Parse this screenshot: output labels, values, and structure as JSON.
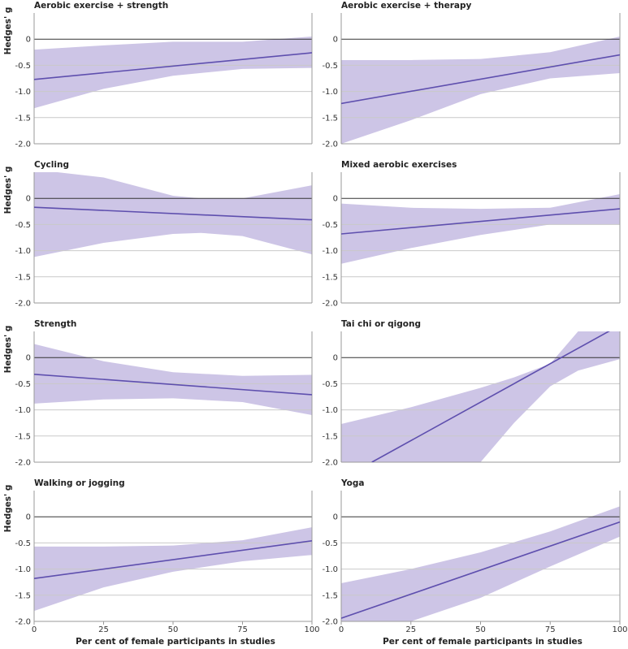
{
  "figure": {
    "y_axis_label": "Hedges' g",
    "x_axis_label": "Per cent of female participants in studies"
  },
  "colors": {
    "band": "#cdc5e6",
    "line": "#5e4fae",
    "grid": "#c9c9c9",
    "zero_line": "#333333",
    "axis": "#9a9a9a"
  },
  "chart_data": [
    {
      "type": "line",
      "title": "Aerobic exercise + strength",
      "xlabel": "Per cent of female participants in studies",
      "ylabel": "Hedges' g",
      "xlim": [
        0,
        100
      ],
      "ylim": [
        -2.0,
        0.5
      ],
      "xticks": [
        0,
        25,
        50,
        75,
        100
      ],
      "yticks": [
        0,
        -0.5,
        -1.0,
        -1.5,
        -2.0
      ],
      "ytick_labels": [
        "0",
        "-0.5",
        "-1.0",
        "-1.5",
        "-2.0"
      ],
      "xtick_labels": [
        "0",
        "25",
        "50",
        "75",
        "100"
      ],
      "fit": {
        "x": [
          0,
          100
        ],
        "y": [
          -0.77,
          -0.26
        ]
      },
      "ci": {
        "x": [
          0,
          25,
          50,
          75,
          100
        ],
        "upper": [
          -0.2,
          -0.12,
          -0.05,
          -0.05,
          0.05
        ],
        "lower": [
          -1.32,
          -0.95,
          -0.7,
          -0.57,
          -0.55
        ]
      }
    },
    {
      "type": "line",
      "title": "Aerobic exercise + therapy",
      "xlabel": "Per cent of female participants in studies",
      "ylabel": "Hedges' g",
      "xlim": [
        0,
        100
      ],
      "ylim": [
        -2.0,
        0.5
      ],
      "xticks": [
        0,
        25,
        50,
        75,
        100
      ],
      "yticks": [
        0,
        -0.5,
        -1.0,
        -1.5,
        -2.0
      ],
      "ytick_labels": [
        "0",
        "-0.5",
        "-1.0",
        "-1.5",
        "-2.0"
      ],
      "xtick_labels": [
        "0",
        "25",
        "50",
        "75",
        "100"
      ],
      "fit": {
        "x": [
          0,
          100
        ],
        "y": [
          -1.23,
          -0.3
        ]
      },
      "ci": {
        "x": [
          0,
          25,
          50,
          75,
          100
        ],
        "upper": [
          -0.4,
          -0.4,
          -0.38,
          -0.25,
          0.05
        ],
        "lower": [
          -2.0,
          -1.55,
          -1.05,
          -0.75,
          -0.65
        ]
      }
    },
    {
      "type": "line",
      "title": "Cycling",
      "xlabel": "Per cent of female participants in studies",
      "ylabel": "Hedges' g",
      "xlim": [
        0,
        100
      ],
      "ylim": [
        -2.0,
        0.5
      ],
      "xticks": [
        0,
        25,
        50,
        75,
        100
      ],
      "yticks": [
        0,
        -0.5,
        -1.0,
        -1.5,
        -2.0
      ],
      "ytick_labels": [
        "0",
        "-0.5",
        "-1.0",
        "-1.5",
        "-2.0"
      ],
      "xtick_labels": [
        "0",
        "25",
        "50",
        "75",
        "100"
      ],
      "fit": {
        "x": [
          0,
          100
        ],
        "y": [
          -0.17,
          -0.41
        ]
      },
      "ci": {
        "x": [
          0,
          25,
          50,
          60,
          75,
          100
        ],
        "upper": [
          0.55,
          0.4,
          0.05,
          0.0,
          0.0,
          0.25
        ],
        "lower": [
          -1.12,
          -0.85,
          -0.68,
          -0.66,
          -0.72,
          -1.07
        ]
      }
    },
    {
      "type": "line",
      "title": "Mixed aerobic exercises",
      "xlabel": "Per cent of female participants in studies",
      "ylabel": "Hedges' g",
      "xlim": [
        0,
        100
      ],
      "ylim": [
        -2.0,
        0.5
      ],
      "xticks": [
        0,
        25,
        50,
        75,
        100
      ],
      "yticks": [
        0,
        -0.5,
        -1.0,
        -1.5,
        -2.0
      ],
      "ytick_labels": [
        "0",
        "-0.5",
        "-1.0",
        "-1.5",
        "-2.0"
      ],
      "xtick_labels": [
        "0",
        "25",
        "50",
        "75",
        "100"
      ],
      "fit": {
        "x": [
          0,
          100
        ],
        "y": [
          -0.68,
          -0.2
        ]
      },
      "ci": {
        "x": [
          0,
          25,
          50,
          75,
          100
        ],
        "upper": [
          -0.1,
          -0.18,
          -0.2,
          -0.18,
          0.08
        ],
        "lower": [
          -1.25,
          -0.95,
          -0.7,
          -0.5,
          -0.5
        ]
      }
    },
    {
      "type": "line",
      "title": "Strength",
      "xlabel": "Per cent of female participants in studies",
      "ylabel": "Hedges' g",
      "xlim": [
        0,
        100
      ],
      "ylim": [
        -2.0,
        0.5
      ],
      "xticks": [
        0,
        25,
        50,
        75,
        100
      ],
      "yticks": [
        0,
        -0.5,
        -1.0,
        -1.5,
        -2.0
      ],
      "ytick_labels": [
        "0",
        "-0.5",
        "-1.0",
        "-1.5",
        "-2.0"
      ],
      "xtick_labels": [
        "0",
        "25",
        "50",
        "75",
        "100"
      ],
      "fit": {
        "x": [
          0,
          100
        ],
        "y": [
          -0.32,
          -0.71
        ]
      },
      "ci": {
        "x": [
          0,
          25,
          50,
          75,
          100
        ],
        "upper": [
          0.26,
          -0.07,
          -0.28,
          -0.35,
          -0.33
        ],
        "lower": [
          -0.88,
          -0.8,
          -0.78,
          -0.85,
          -1.1
        ]
      }
    },
    {
      "type": "line",
      "title": "Tai chi or qigong",
      "xlabel": "Per cent of female participants in studies",
      "ylabel": "Hedges' g",
      "xlim": [
        0,
        100
      ],
      "ylim": [
        -2.0,
        0.5
      ],
      "xticks": [
        0,
        25,
        50,
        75,
        100
      ],
      "yticks": [
        0,
        -0.5,
        -1.0,
        -1.5,
        -2.0
      ],
      "ytick_labels": [
        "0",
        "-0.5",
        "-1.0",
        "-1.5",
        "-2.0"
      ],
      "xtick_labels": [
        "0",
        "25",
        "50",
        "75",
        "100"
      ],
      "fit": {
        "x": [
          11,
          97
        ],
        "y": [
          -2.0,
          0.53
        ]
      },
      "ci": {
        "x": [
          0,
          25,
          50,
          62,
          75,
          85,
          100
        ],
        "upper": [
          -1.27,
          -0.95,
          -0.58,
          -0.38,
          -0.12,
          0.5,
          0.5
        ],
        "lower": [
          -2.0,
          -2.0,
          -2.0,
          -1.25,
          -0.55,
          -0.25,
          -0.03
        ]
      }
    },
    {
      "type": "line",
      "title": "Walking or jogging",
      "xlabel": "Per cent of female participants in studies",
      "ylabel": "Hedges' g",
      "xlim": [
        0,
        100
      ],
      "ylim": [
        -2.0,
        0.5
      ],
      "xticks": [
        0,
        25,
        50,
        75,
        100
      ],
      "yticks": [
        0,
        -0.5,
        -1.0,
        -1.5,
        -2.0
      ],
      "ytick_labels": [
        "0",
        "-0.5",
        "-1.0",
        "-1.5",
        "-2.0"
      ],
      "xtick_labels": [
        "0",
        "25",
        "50",
        "75",
        "100"
      ],
      "fit": {
        "x": [
          0,
          100
        ],
        "y": [
          -1.18,
          -0.46
        ]
      },
      "ci": {
        "x": [
          0,
          25,
          50,
          75,
          100
        ],
        "upper": [
          -0.57,
          -0.57,
          -0.55,
          -0.45,
          -0.2
        ],
        "lower": [
          -1.8,
          -1.35,
          -1.05,
          -0.85,
          -0.73
        ]
      }
    },
    {
      "type": "line",
      "title": "Yoga",
      "xlabel": "Per cent of female participants in studies",
      "ylabel": "Hedges' g",
      "xlim": [
        0,
        100
      ],
      "ylim": [
        -2.0,
        0.5
      ],
      "xticks": [
        0,
        25,
        50,
        75,
        100
      ],
      "yticks": [
        0,
        -0.5,
        -1.0,
        -1.5,
        -2.0
      ],
      "ytick_labels": [
        "0",
        "-0.5",
        "-1.0",
        "-1.5",
        "-2.0"
      ],
      "xtick_labels": [
        "0",
        "25",
        "50",
        "75",
        "100"
      ],
      "fit": {
        "x": [
          0,
          100
        ],
        "y": [
          -1.94,
          -0.1
        ]
      },
      "ci": {
        "x": [
          0,
          25,
          50,
          75,
          100
        ],
        "upper": [
          -1.27,
          -1.0,
          -0.68,
          -0.28,
          0.2
        ],
        "lower": [
          -2.0,
          -2.0,
          -1.55,
          -0.95,
          -0.38
        ]
      }
    }
  ]
}
